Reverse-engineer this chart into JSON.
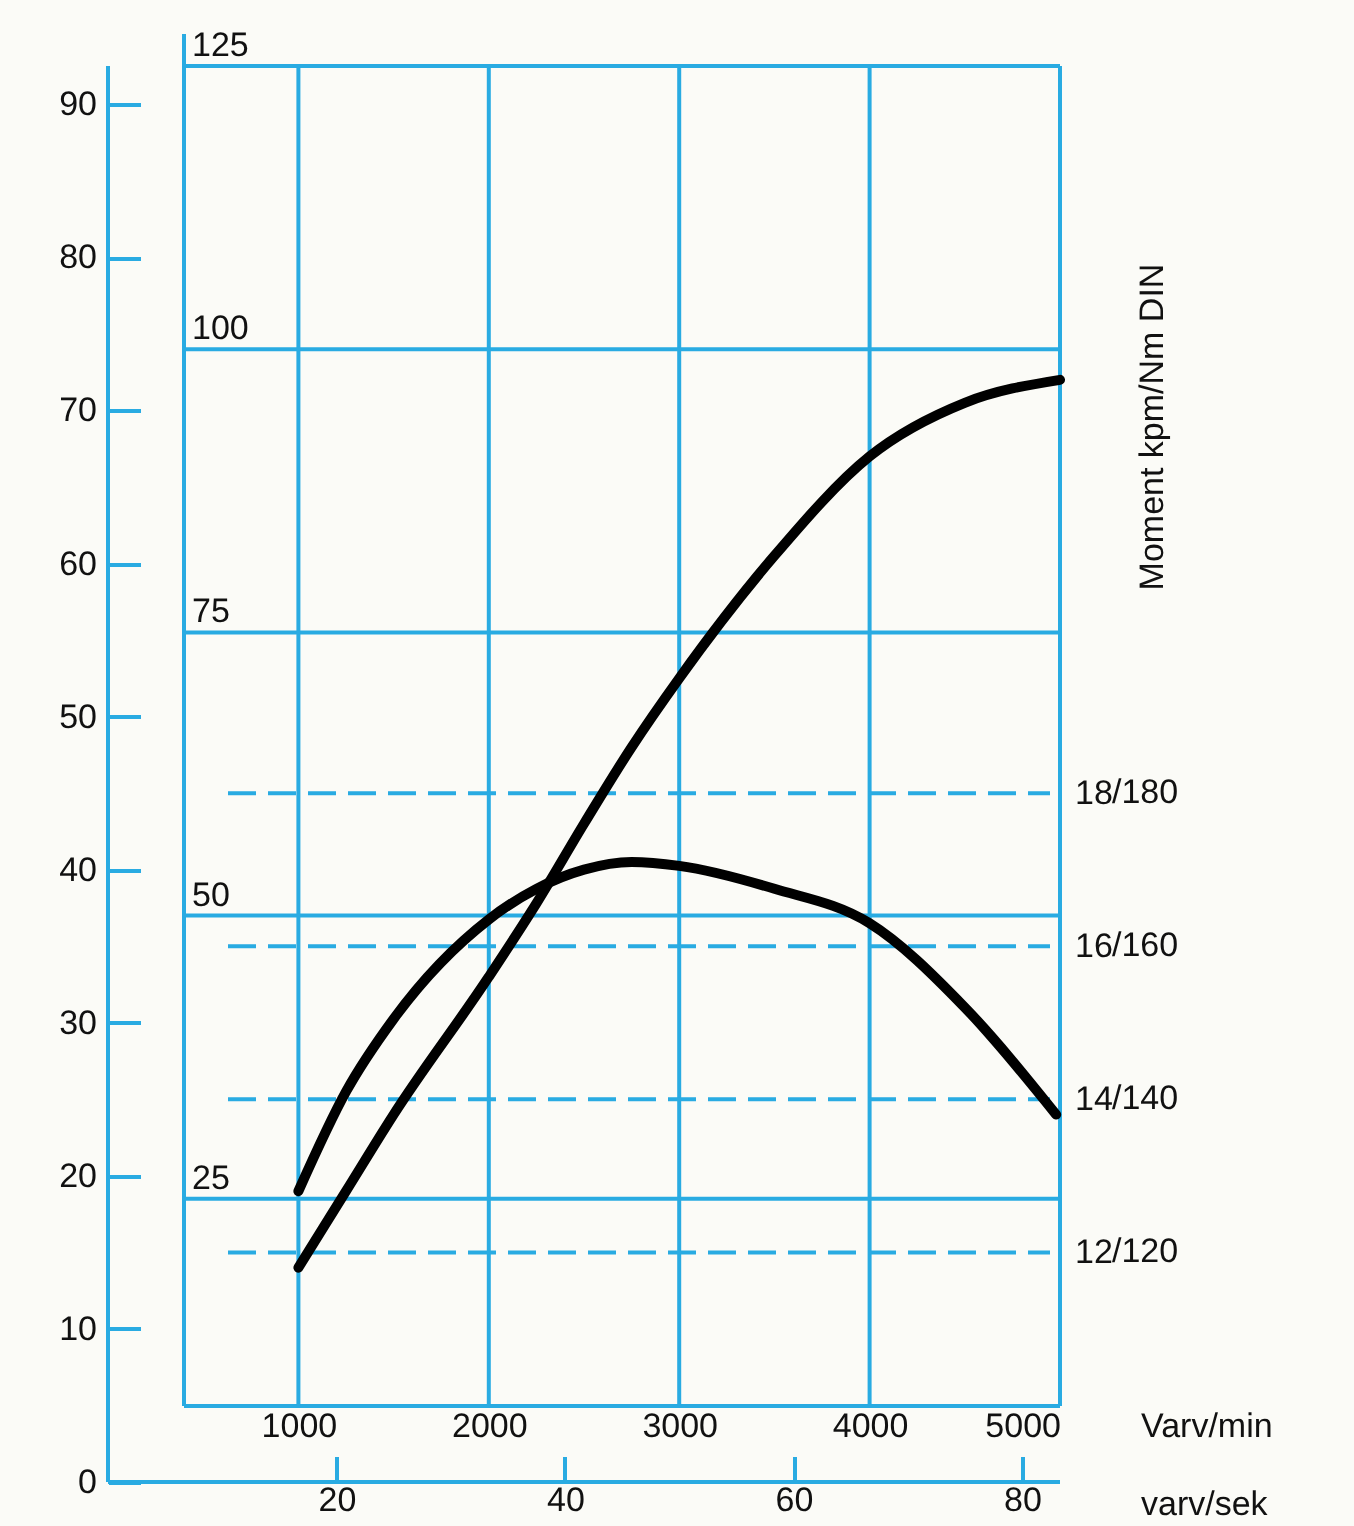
{
  "chart_data": {
    "type": "line",
    "xlabel": "Varv/min",
    "x2label": "varv/sek",
    "y2label": "Moment kpm/Nm DIN",
    "xlim": [
      0,
      5000
    ],
    "xticks": [
      1000,
      2000,
      3000,
      4000,
      5000
    ],
    "x2lim": [
      0,
      83.33
    ],
    "x2ticks": [
      20,
      40,
      60,
      80
    ],
    "ylim": [
      0,
      92.5
    ],
    "yticks": [
      0,
      10,
      20,
      30,
      40,
      50,
      60,
      70,
      80,
      90
    ],
    "y2lim": [
      9,
      27.5
    ],
    "y2ticks": [
      12,
      14,
      16,
      18
    ],
    "annotations": [
      "/120",
      "/140",
      "/160",
      "/180"
    ],
    "y3lim": [
      0,
      125
    ],
    "y3ticks": [
      25,
      50,
      75,
      100,
      125
    ],
    "grid": true,
    "series": [
      {
        "color": "#000000",
        "x": [
          1000,
          1250,
          1500,
          2000,
          2250,
          2500,
          2750,
          3000,
          3500,
          4000,
          4500,
          5000
        ],
        "values": [
          14,
          19,
          24,
          33,
          37.8,
          43,
          48,
          52.5,
          60.5,
          67,
          70.5,
          72
        ]
      },
      {
        "color": "#000000",
        "axis": "y2",
        "x": [
          1000,
          1250,
          1500,
          2000,
          2250,
          2500,
          2750,
          3000,
          3500,
          4000,
          4500,
          4980
        ],
        "values": [
          12.8,
          14.1,
          15.05,
          16.35,
          16.75,
          17,
          17.1,
          17.05,
          16.75,
          16.3,
          15.2,
          13.8
        ]
      }
    ]
  }
}
